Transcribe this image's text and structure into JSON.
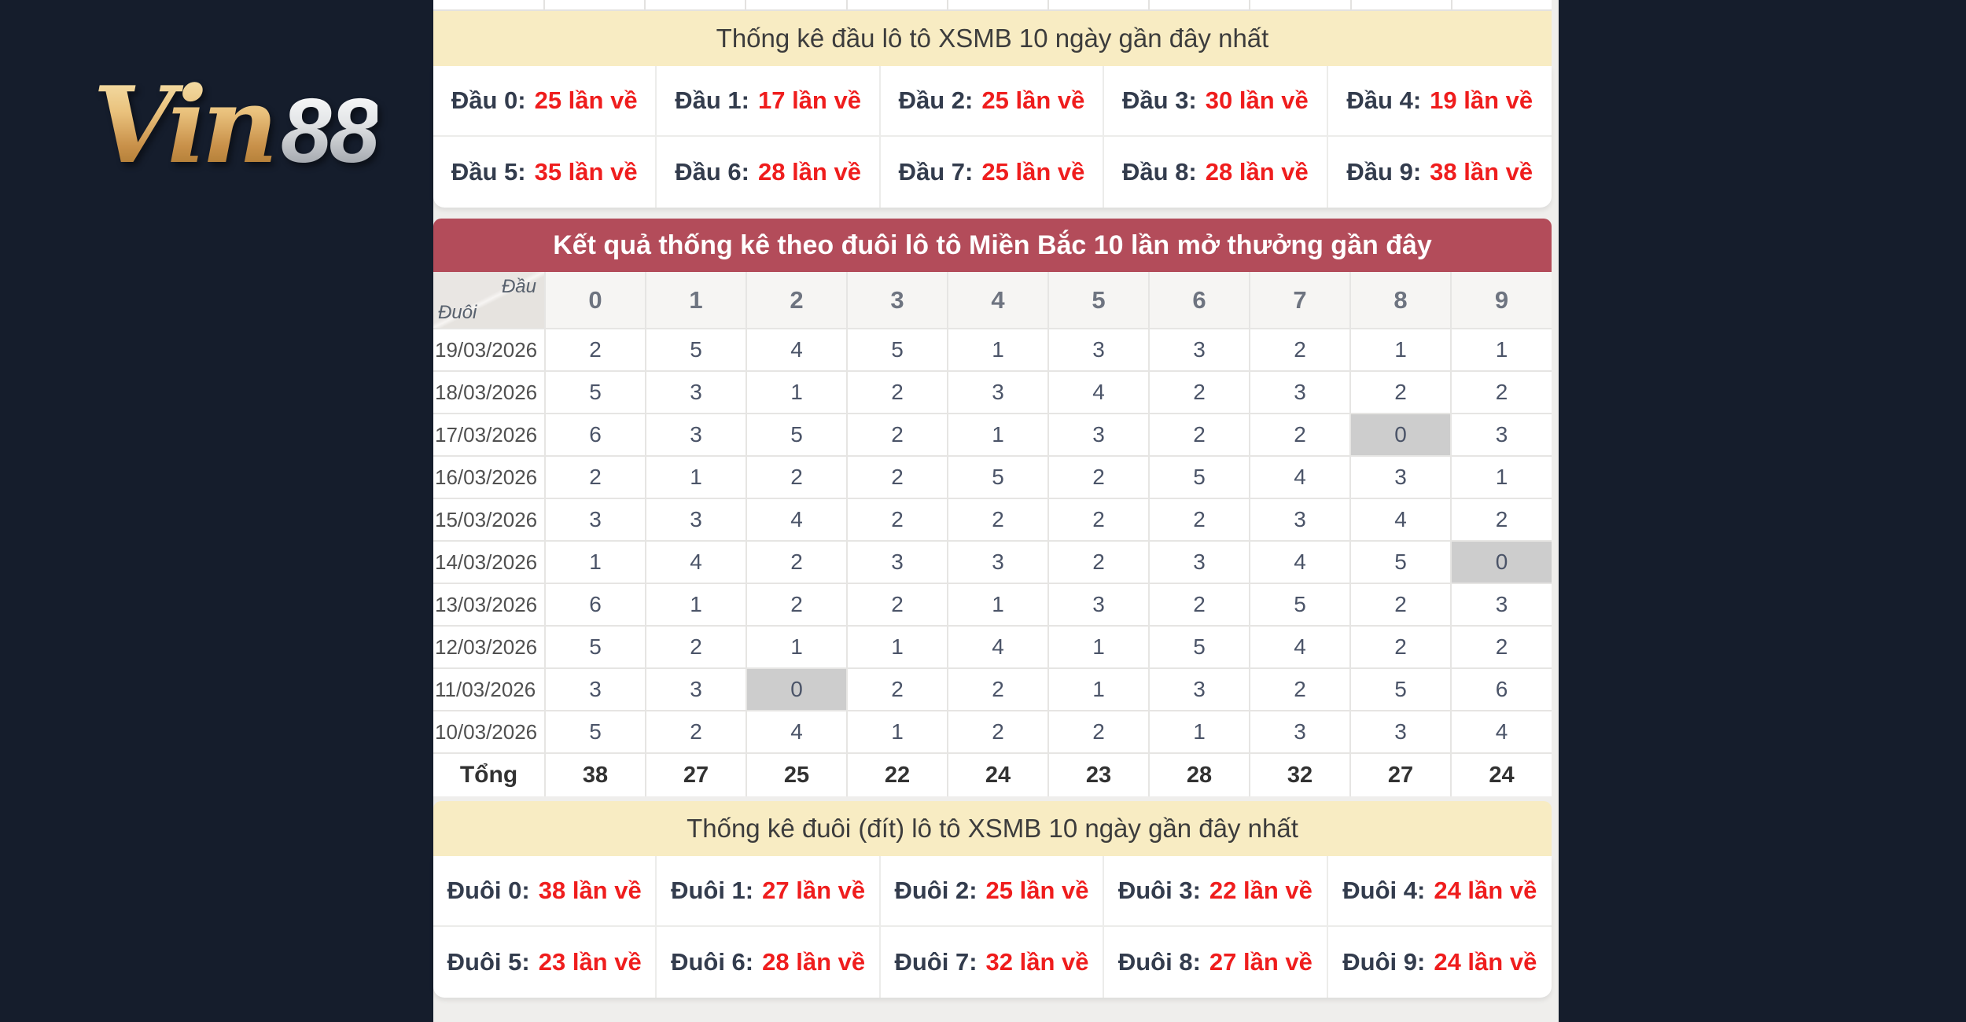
{
  "logo": {
    "gold": "Vin",
    "silver": "88"
  },
  "colors": {
    "page_bg": "#151d2c",
    "banner_yellow": "#f8ecc3",
    "header_red": "#b34c5a",
    "value_red": "#ef1d1d",
    "zero_highlight": "#cdcdcd"
  },
  "head_stats": {
    "title": "Thống kê đầu lô tô XSMB 10 ngày gần đây nhất",
    "items": [
      {
        "label": "Đầu 0:",
        "value": "25 lần về"
      },
      {
        "label": "Đầu 1:",
        "value": "17 lần về"
      },
      {
        "label": "Đầu 2:",
        "value": "25 lần về"
      },
      {
        "label": "Đầu 3:",
        "value": "30 lần về"
      },
      {
        "label": "Đầu 4:",
        "value": "19 lần về"
      },
      {
        "label": "Đầu 5:",
        "value": "35 lần về"
      },
      {
        "label": "Đầu 6:",
        "value": "28 lần về"
      },
      {
        "label": "Đầu 7:",
        "value": "25 lần về"
      },
      {
        "label": "Đầu 8:",
        "value": "28 lần về"
      },
      {
        "label": "Đầu 9:",
        "value": "38 lần về"
      }
    ]
  },
  "matrix": {
    "title": "Kết quả thống kê theo đuôi lô tô Miền Bắc 10 lần mở thưởng gần đây",
    "corner_top": "Đầu",
    "corner_bottom": "Đuôi",
    "columns": [
      "0",
      "1",
      "2",
      "3",
      "4",
      "5",
      "6",
      "7",
      "8",
      "9"
    ],
    "rows": [
      {
        "date": "19/03/2026",
        "values": [
          2,
          5,
          4,
          5,
          1,
          3,
          3,
          2,
          1,
          1
        ]
      },
      {
        "date": "18/03/2026",
        "values": [
          5,
          3,
          1,
          2,
          3,
          4,
          2,
          3,
          2,
          2
        ]
      },
      {
        "date": "17/03/2026",
        "values": [
          6,
          3,
          5,
          2,
          1,
          3,
          2,
          2,
          0,
          3
        ]
      },
      {
        "date": "16/03/2026",
        "values": [
          2,
          1,
          2,
          2,
          5,
          2,
          5,
          4,
          3,
          1
        ]
      },
      {
        "date": "15/03/2026",
        "values": [
          3,
          3,
          4,
          2,
          2,
          2,
          2,
          3,
          4,
          2
        ]
      },
      {
        "date": "14/03/2026",
        "values": [
          1,
          4,
          2,
          3,
          3,
          2,
          3,
          4,
          5,
          0
        ]
      },
      {
        "date": "13/03/2026",
        "values": [
          6,
          1,
          2,
          2,
          1,
          3,
          2,
          5,
          2,
          3
        ]
      },
      {
        "date": "12/03/2026",
        "values": [
          5,
          2,
          1,
          1,
          4,
          1,
          5,
          4,
          2,
          2
        ]
      },
      {
        "date": "11/03/2026",
        "values": [
          3,
          3,
          0,
          2,
          2,
          1,
          3,
          2,
          5,
          6
        ]
      },
      {
        "date": "10/03/2026",
        "values": [
          5,
          2,
          4,
          1,
          2,
          2,
          1,
          3,
          3,
          4
        ]
      }
    ],
    "total_label": "Tổng",
    "totals": [
      38,
      27,
      25,
      22,
      24,
      23,
      28,
      32,
      27,
      24
    ]
  },
  "tail_stats": {
    "title": "Thống kê đuôi (đít) lô tô XSMB 10 ngày gần đây nhất",
    "items": [
      {
        "label": "Đuôi 0:",
        "value": "38 lần về"
      },
      {
        "label": "Đuôi 1:",
        "value": "27 lần về"
      },
      {
        "label": "Đuôi 2:",
        "value": "25 lần về"
      },
      {
        "label": "Đuôi 3:",
        "value": "22 lần về"
      },
      {
        "label": "Đuôi 4:",
        "value": "24 lần về"
      },
      {
        "label": "Đuôi 5:",
        "value": "23 lần về"
      },
      {
        "label": "Đuôi 6:",
        "value": "28 lần về"
      },
      {
        "label": "Đuôi 7:",
        "value": "32 lần về"
      },
      {
        "label": "Đuôi 8:",
        "value": "27 lần về"
      },
      {
        "label": "Đuôi 9:",
        "value": "24 lần về"
      }
    ]
  }
}
